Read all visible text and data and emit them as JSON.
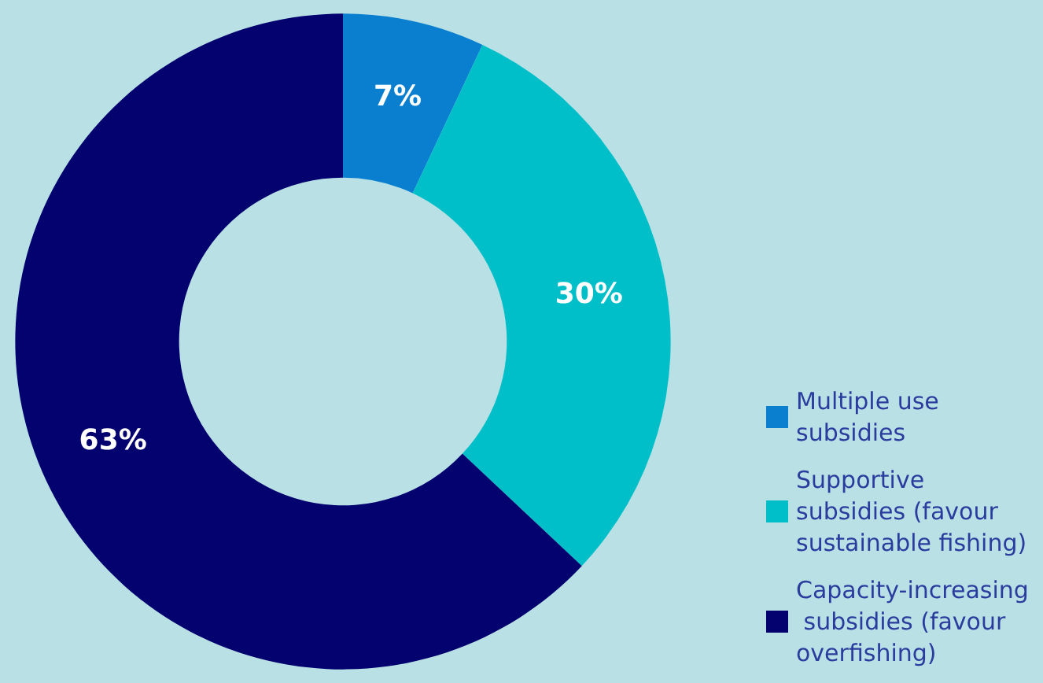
{
  "chart_data": {
    "type": "donut",
    "categories": [
      "Multiple use subsidies",
      "Supportive subsidies (favour sustainable fishing)",
      "Capacity-increasing subsidies (favour overfishing)"
    ],
    "values": [
      7,
      30,
      63
    ],
    "colors": [
      "#0a7fcf",
      "#00bfc9",
      "#03026e"
    ],
    "value_labels": [
      "7%",
      "30%",
      "63%"
    ],
    "legend": "bottom right"
  }
}
